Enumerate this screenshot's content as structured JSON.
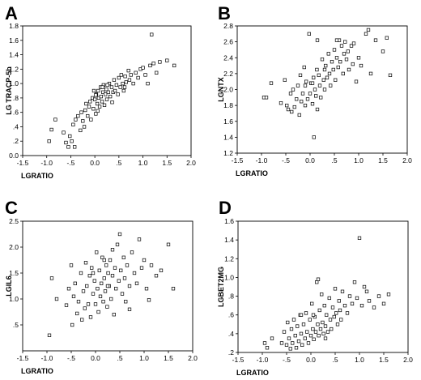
{
  "chart_data": [
    {
      "panel": "A",
      "type": "scatter",
      "xlabel": "LGRATIO",
      "ylabel": "LG TRACP-5b",
      "xlim": [
        -1.5,
        2.0
      ],
      "ylim": [
        0.0,
        1.8
      ],
      "xticks": [
        -1.5,
        -1.0,
        -0.5,
        0.0,
        0.5,
        1.0,
        1.5,
        2.0
      ],
      "xtick_labels": [
        "-1.5",
        "-1.0",
        "-.5",
        "0.0",
        ".5",
        "1.0",
        "1.5",
        "2.0"
      ],
      "yticks": [
        0.0,
        0.2,
        0.4,
        0.6,
        0.8,
        1.0,
        1.2,
        1.4,
        1.6,
        1.8
      ],
      "ytick_labels": [
        "0.0",
        ".2",
        ".4",
        ".6",
        ".8",
        "1.0",
        "1.2",
        "1.4",
        "1.6",
        "1.8"
      ],
      "grid": false,
      "points": [
        [
          -0.95,
          0.2
        ],
        [
          -0.9,
          0.36
        ],
        [
          -0.82,
          0.5
        ],
        [
          -0.65,
          0.32
        ],
        [
          -0.6,
          0.18
        ],
        [
          -0.55,
          0.12
        ],
        [
          -0.52,
          0.27
        ],
        [
          -0.48,
          0.2
        ],
        [
          -0.45,
          0.43
        ],
        [
          -0.42,
          0.12
        ],
        [
          -0.4,
          0.5
        ],
        [
          -0.35,
          0.55
        ],
        [
          -0.3,
          0.35
        ],
        [
          -0.28,
          0.6
        ],
        [
          -0.25,
          0.48
        ],
        [
          -0.22,
          0.4
        ],
        [
          -0.2,
          0.63
        ],
        [
          -0.18,
          0.72
        ],
        [
          -0.15,
          0.55
        ],
        [
          -0.12,
          0.68
        ],
        [
          -0.1,
          0.75
        ],
        [
          -0.08,
          0.5
        ],
        [
          -0.05,
          0.8
        ],
        [
          -0.03,
          0.65
        ],
        [
          0.0,
          0.78
        ],
        [
          0.02,
          0.58
        ],
        [
          0.03,
          0.85
        ],
        [
          0.05,
          0.72
        ],
        [
          0.07,
          0.9
        ],
        [
          0.08,
          0.8
        ],
        [
          0.1,
          0.68
        ],
        [
          0.12,
          0.95
        ],
        [
          0.13,
          0.82
        ],
        [
          0.15,
          0.75
        ],
        [
          0.17,
          0.88
        ],
        [
          0.18,
          0.98
        ],
        [
          0.2,
          0.7
        ],
        [
          0.22,
          0.85
        ],
        [
          0.24,
          0.92
        ],
        [
          0.25,
          0.78
        ],
        [
          0.28,
          0.88
        ],
        [
          0.3,
          1.0
        ],
        [
          0.32,
          0.82
        ],
        [
          0.35,
          0.95
        ],
        [
          0.38,
          0.88
        ],
        [
          0.4,
          1.05
        ],
        [
          0.42,
          0.9
        ],
        [
          0.45,
          0.98
        ],
        [
          0.48,
          0.85
        ],
        [
          0.5,
          1.08
        ],
        [
          0.53,
          0.95
        ],
        [
          0.55,
          1.12
        ],
        [
          0.58,
          1.0
        ],
        [
          0.6,
          0.9
        ],
        [
          0.63,
          1.1
        ],
        [
          0.65,
          1.02
        ],
        [
          0.7,
          1.18
        ],
        [
          0.72,
          1.05
        ],
        [
          0.75,
          1.12
        ],
        [
          0.8,
          1.0
        ],
        [
          0.85,
          1.15
        ],
        [
          0.9,
          1.08
        ],
        [
          0.95,
          1.2
        ],
        [
          1.0,
          1.22
        ],
        [
          1.05,
          1.12
        ],
        [
          1.1,
          1.0
        ],
        [
          1.15,
          1.25
        ],
        [
          1.18,
          1.68
        ],
        [
          1.22,
          1.28
        ],
        [
          1.28,
          1.15
        ],
        [
          1.35,
          1.3
        ],
        [
          1.5,
          1.32
        ],
        [
          1.65,
          1.25
        ],
        [
          -0.02,
          0.9
        ],
        [
          0.06,
          0.62
        ],
        [
          0.26,
          0.98
        ],
        [
          0.36,
          0.74
        ],
        [
          0.62,
          0.95
        ],
        [
          0.02,
          0.84
        ],
        [
          0.16,
          0.95
        ]
      ]
    },
    {
      "panel": "B",
      "type": "scatter",
      "xlabel": "LGRATIO",
      "ylabel": "LGNTX",
      "xlim": [
        -1.5,
        2.0
      ],
      "ylim": [
        1.2,
        2.8
      ],
      "xticks": [
        -1.5,
        -1.0,
        -0.5,
        0.0,
        0.5,
        1.0,
        1.5,
        2.0
      ],
      "xtick_labels": [
        "-1.5",
        "-1.0",
        "-.5",
        "0.0",
        ".5",
        "1.0",
        "1.5",
        "2.0"
      ],
      "yticks": [
        1.2,
        1.4,
        1.6,
        1.8,
        2.0,
        2.2,
        2.4,
        2.6,
        2.8
      ],
      "ytick_labels": [
        "1.2",
        "1.4",
        "1.6",
        "1.8",
        "2.0",
        "2.2",
        "2.4",
        "2.6",
        "2.8"
      ],
      "grid": false,
      "points": [
        [
          -0.95,
          1.9
        ],
        [
          -0.9,
          1.9
        ],
        [
          -0.8,
          2.08
        ],
        [
          -0.6,
          1.83
        ],
        [
          -0.52,
          2.12
        ],
        [
          -0.48,
          1.8
        ],
        [
          -0.45,
          1.75
        ],
        [
          -0.4,
          1.95
        ],
        [
          -0.38,
          1.72
        ],
        [
          -0.35,
          2.0
        ],
        [
          -0.32,
          1.78
        ],
        [
          -0.28,
          1.88
        ],
        [
          -0.25,
          2.05
        ],
        [
          -0.22,
          1.68
        ],
        [
          -0.2,
          2.18
        ],
        [
          -0.18,
          1.85
        ],
        [
          -0.15,
          1.95
        ],
        [
          -0.12,
          2.28
        ],
        [
          -0.1,
          1.8
        ],
        [
          -0.08,
          2.1
        ],
        [
          -0.05,
          1.88
        ],
        [
          -0.02,
          2.7
        ],
        [
          0.0,
          1.95
        ],
        [
          0.02,
          2.08
        ],
        [
          0.05,
          1.82
        ],
        [
          0.07,
          2.15
        ],
        [
          0.08,
          1.4
        ],
        [
          0.1,
          2.0
        ],
        [
          0.12,
          1.92
        ],
        [
          0.14,
          2.25
        ],
        [
          0.15,
          1.75
        ],
        [
          0.18,
          2.18
        ],
        [
          0.2,
          2.05
        ],
        [
          0.22,
          1.9
        ],
        [
          0.25,
          2.38
        ],
        [
          0.28,
          2.12
        ],
        [
          0.3,
          2.0
        ],
        [
          0.32,
          2.3
        ],
        [
          0.35,
          2.15
        ],
        [
          0.38,
          2.45
        ],
        [
          0.4,
          2.2
        ],
        [
          0.42,
          2.05
        ],
        [
          0.45,
          2.35
        ],
        [
          0.48,
          2.25
        ],
        [
          0.5,
          2.5
        ],
        [
          0.52,
          2.12
        ],
        [
          0.55,
          2.4
        ],
        [
          0.58,
          2.28
        ],
        [
          0.6,
          2.62
        ],
        [
          0.62,
          2.35
        ],
        [
          0.65,
          2.55
        ],
        [
          0.68,
          2.2
        ],
        [
          0.7,
          2.45
        ],
        [
          0.72,
          2.6
        ],
        [
          0.75,
          2.38
        ],
        [
          0.78,
          2.48
        ],
        [
          0.8,
          2.25
        ],
        [
          0.85,
          2.55
        ],
        [
          0.88,
          2.32
        ],
        [
          0.9,
          2.58
        ],
        [
          0.95,
          2.1
        ],
        [
          1.0,
          2.4
        ],
        [
          1.05,
          2.3
        ],
        [
          1.15,
          2.7
        ],
        [
          1.2,
          2.75
        ],
        [
          1.25,
          2.2
        ],
        [
          1.35,
          2.62
        ],
        [
          1.5,
          2.48
        ],
        [
          1.65,
          2.18
        ],
        [
          1.58,
          2.65
        ],
        [
          0.55,
          2.62
        ],
        [
          0.3,
          2.25
        ],
        [
          0.15,
          2.62
        ],
        [
          0.05,
          2.08
        ],
        [
          -0.1,
          2.05
        ]
      ]
    },
    {
      "panel": "C",
      "type": "scatter",
      "xlabel": "LGRATIO",
      "ylabel": "LGIL6",
      "xlim": [
        -1.5,
        2.0
      ],
      "ylim": [
        0.0,
        2.5
      ],
      "xticks": [
        -1.5,
        -1.0,
        -0.5,
        0.0,
        0.5,
        1.0,
        1.5,
        2.0
      ],
      "xtick_labels": [
        "-1.5",
        "-1.0",
        "-.5",
        "0.0",
        ".5",
        "1.0",
        "1.5",
        "2.0"
      ],
      "yticks": [
        0.5,
        1.0,
        1.5,
        2.0,
        2.5
      ],
      "ytick_labels": [
        ".5",
        "1.0",
        "1.5",
        "2.0",
        "2.5"
      ],
      "grid": false,
      "points": [
        [
          -0.95,
          0.3
        ],
        [
          -0.9,
          1.4
        ],
        [
          -0.8,
          1.0
        ],
        [
          -0.6,
          0.88
        ],
        [
          -0.55,
          1.2
        ],
        [
          -0.5,
          1.65
        ],
        [
          -0.48,
          0.5
        ],
        [
          -0.45,
          1.05
        ],
        [
          -0.42,
          1.3
        ],
        [
          -0.38,
          0.72
        ],
        [
          -0.35,
          0.95
        ],
        [
          -0.3,
          1.5
        ],
        [
          -0.28,
          0.6
        ],
        [
          -0.25,
          1.15
        ],
        [
          -0.22,
          0.82
        ],
        [
          -0.2,
          1.7
        ],
        [
          -0.18,
          1.25
        ],
        [
          -0.15,
          0.9
        ],
        [
          -0.12,
          1.45
        ],
        [
          -0.1,
          0.65
        ],
        [
          -0.08,
          1.6
        ],
        [
          -0.05,
          1.1
        ],
        [
          -0.02,
          1.35
        ],
        [
          0.0,
          0.9
        ],
        [
          0.02,
          1.9
        ],
        [
          0.04,
          1.2
        ],
        [
          0.06,
          0.75
        ],
        [
          0.08,
          1.55
        ],
        [
          0.1,
          1.05
        ],
        [
          0.12,
          1.3
        ],
        [
          0.14,
          1.8
        ],
        [
          0.16,
          0.95
        ],
        [
          0.18,
          1.4
        ],
        [
          0.2,
          1.15
        ],
        [
          0.22,
          1.65
        ],
        [
          0.24,
          0.85
        ],
        [
          0.26,
          1.5
        ],
        [
          0.28,
          1.25
        ],
        [
          0.3,
          1.75
        ],
        [
          0.32,
          1.0
        ],
        [
          0.35,
          1.45
        ],
        [
          0.38,
          0.7
        ],
        [
          0.4,
          1.6
        ],
        [
          0.42,
          1.2
        ],
        [
          0.45,
          2.05
        ],
        [
          0.48,
          1.35
        ],
        [
          0.5,
          2.25
        ],
        [
          0.52,
          1.55
        ],
        [
          0.55,
          1.1
        ],
        [
          0.58,
          1.8
        ],
        [
          0.6,
          1.4
        ],
        [
          0.62,
          0.95
        ],
        [
          0.65,
          1.65
        ],
        [
          0.7,
          1.25
        ],
        [
          0.75,
          1.9
        ],
        [
          0.8,
          1.5
        ],
        [
          0.85,
          1.3
        ],
        [
          0.9,
          2.15
        ],
        [
          0.95,
          1.6
        ],
        [
          1.0,
          1.75
        ],
        [
          1.05,
          1.2
        ],
        [
          1.1,
          0.98
        ],
        [
          1.15,
          1.65
        ],
        [
          1.25,
          1.45
        ],
        [
          1.35,
          1.55
        ],
        [
          1.5,
          2.05
        ],
        [
          1.6,
          1.2
        ],
        [
          0.18,
          1.75
        ],
        [
          -0.05,
          1.5
        ],
        [
          0.35,
          1.95
        ],
        [
          0.7,
          0.8
        ],
        [
          0.25,
          1.25
        ]
      ]
    },
    {
      "panel": "D",
      "type": "scatter",
      "xlabel": "LGRATIO",
      "ylabel": "LGBET2MG",
      "xlim": [
        -1.5,
        2.0
      ],
      "ylim": [
        0.2,
        1.6
      ],
      "xticks": [
        -1.5,
        -1.0,
        -0.5,
        0.0,
        0.5,
        1.0,
        1.5,
        2.0
      ],
      "xtick_labels": [
        "-1.5",
        "-1.0",
        "-.5",
        "0.0",
        ".5",
        "1.0",
        "1.5",
        "2.0"
      ],
      "yticks": [
        0.2,
        0.4,
        0.6,
        0.8,
        1.0,
        1.2,
        1.4,
        1.6
      ],
      "ytick_labels": [
        ".2",
        ".4",
        ".6",
        ".8",
        "1.0",
        "1.2",
        "1.4",
        "1.6"
      ],
      "grid": false,
      "points": [
        [
          -0.95,
          0.3
        ],
        [
          -0.9,
          0.25
        ],
        [
          -0.8,
          0.35
        ],
        [
          -0.6,
          0.3
        ],
        [
          -0.55,
          0.42
        ],
        [
          -0.5,
          0.28
        ],
        [
          -0.48,
          0.52
        ],
        [
          -0.45,
          0.35
        ],
        [
          -0.42,
          0.24
        ],
        [
          -0.4,
          0.45
        ],
        [
          -0.38,
          0.3
        ],
        [
          -0.35,
          0.55
        ],
        [
          -0.32,
          0.38
        ],
        [
          -0.3,
          0.25
        ],
        [
          -0.28,
          0.48
        ],
        [
          -0.25,
          0.32
        ],
        [
          -0.22,
          0.6
        ],
        [
          -0.2,
          0.4
        ],
        [
          -0.18,
          0.28
        ],
        [
          -0.15,
          0.5
        ],
        [
          -0.12,
          0.35
        ],
        [
          -0.1,
          0.62
        ],
        [
          -0.08,
          0.42
        ],
        [
          -0.05,
          0.3
        ],
        [
          -0.02,
          0.55
        ],
        [
          0.0,
          0.38
        ],
        [
          0.02,
          0.72
        ],
        [
          0.04,
          0.45
        ],
        [
          0.06,
          0.34
        ],
        [
          0.08,
          0.58
        ],
        [
          0.1,
          0.42
        ],
        [
          0.12,
          0.95
        ],
        [
          0.14,
          0.5
        ],
        [
          0.16,
          0.38
        ],
        [
          0.18,
          0.65
        ],
        [
          0.2,
          0.45
        ],
        [
          0.22,
          0.82
        ],
        [
          0.24,
          0.52
        ],
        [
          0.26,
          0.4
        ],
        [
          0.28,
          0.7
        ],
        [
          0.3,
          0.48
        ],
        [
          0.32,
          0.6
        ],
        [
          0.35,
          0.42
        ],
        [
          0.38,
          0.78
        ],
        [
          0.4,
          0.55
        ],
        [
          0.42,
          0.45
        ],
        [
          0.45,
          0.68
        ],
        [
          0.48,
          0.58
        ],
        [
          0.5,
          0.88
        ],
        [
          0.52,
          0.62
        ],
        [
          0.55,
          0.5
        ],
        [
          0.58,
          0.75
        ],
        [
          0.6,
          0.65
        ],
        [
          0.62,
          0.55
        ],
        [
          0.65,
          0.85
        ],
        [
          0.7,
          0.7
        ],
        [
          0.75,
          0.62
        ],
        [
          0.8,
          0.8
        ],
        [
          0.85,
          0.72
        ],
        [
          0.9,
          0.95
        ],
        [
          0.95,
          0.78
        ],
        [
          1.0,
          1.42
        ],
        [
          1.05,
          0.7
        ],
        [
          1.1,
          0.9
        ],
        [
          1.15,
          0.85
        ],
        [
          1.2,
          0.75
        ],
        [
          1.3,
          0.68
        ],
        [
          1.4,
          0.8
        ],
        [
          1.5,
          0.72
        ],
        [
          1.6,
          0.82
        ],
        [
          0.15,
          0.98
        ],
        [
          -0.2,
          0.6
        ],
        [
          0.3,
          0.35
        ],
        [
          0.05,
          0.6
        ]
      ]
    }
  ]
}
